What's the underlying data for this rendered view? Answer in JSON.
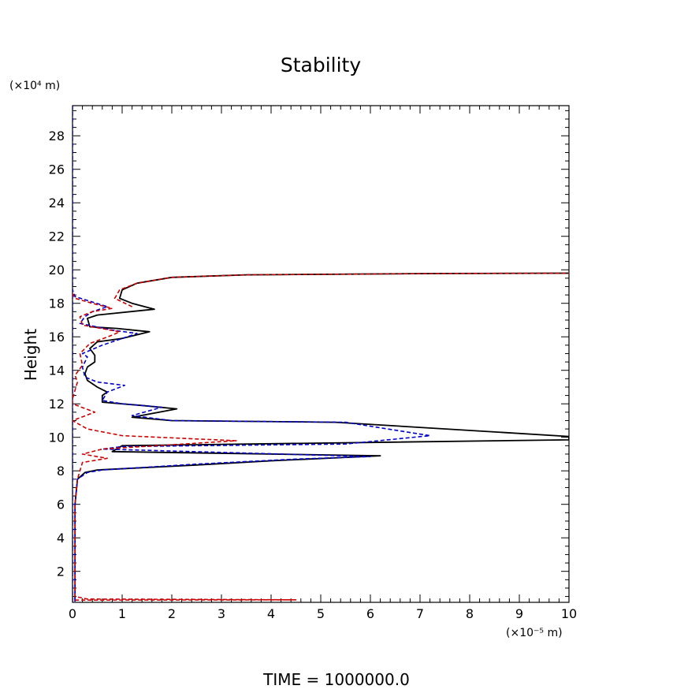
{
  "chart_data": {
    "type": "line",
    "title": "Stability",
    "xlabel": "",
    "ylabel": "Height",
    "x_unit_label": "(×10⁻⁵ m)",
    "y_unit_label": "(×10⁴ m)",
    "xlim": [
      0,
      10
    ],
    "ylim": [
      0.15,
      29.8
    ],
    "x_ticks": [
      0,
      1,
      2,
      3,
      4,
      5,
      6,
      7,
      8,
      9,
      10
    ],
    "x_tick_labels": [
      "0",
      "1",
      "2",
      "3",
      "4",
      "5",
      "6",
      "7",
      "8",
      "9",
      "10"
    ],
    "y_ticks": [
      2,
      4,
      6,
      8,
      10,
      12,
      14,
      16,
      18,
      20,
      22,
      24,
      26,
      28
    ],
    "y_tick_labels": [
      "2",
      "4",
      "6",
      "8",
      "10",
      "12",
      "14",
      "16",
      "18",
      "20",
      "22",
      "24",
      "26",
      "28"
    ],
    "grid": false,
    "footer": "TIME = 1000000.0",
    "series": [
      {
        "name": "black-solid",
        "color": "#000000",
        "dash": "solid",
        "points": [
          [
            0.05,
            0.2
          ],
          [
            0.05,
            6.0
          ],
          [
            0.1,
            7.5
          ],
          [
            0.25,
            7.9
          ],
          [
            0.5,
            8.05
          ],
          [
            2.5,
            8.35
          ],
          [
            4.0,
            8.6
          ],
          [
            6.2,
            8.9
          ],
          [
            0.8,
            9.15
          ],
          [
            1.0,
            9.5
          ],
          [
            10,
            9.85
          ],
          [
            10,
            10.05
          ],
          [
            5.3,
            10.9
          ],
          [
            2.0,
            11.0
          ],
          [
            1.2,
            11.2
          ],
          [
            2.1,
            11.7
          ],
          [
            1.4,
            11.9
          ],
          [
            0.6,
            12.1
          ],
          [
            0.6,
            12.5
          ],
          [
            0.7,
            12.7
          ],
          [
            0.5,
            13.0
          ],
          [
            0.3,
            13.4
          ],
          [
            0.25,
            13.8
          ],
          [
            0.3,
            14.2
          ],
          [
            0.45,
            14.5
          ],
          [
            0.45,
            14.9
          ],
          [
            0.35,
            15.3
          ],
          [
            0.5,
            15.7
          ],
          [
            1.0,
            15.9
          ],
          [
            1.55,
            16.3
          ],
          [
            0.9,
            16.5
          ],
          [
            0.35,
            16.6
          ],
          [
            0.3,
            17.1
          ],
          [
            0.5,
            17.3
          ],
          [
            1.65,
            17.65
          ],
          [
            1.2,
            18.0
          ],
          [
            0.95,
            18.3
          ],
          [
            1.0,
            18.8
          ],
          [
            1.3,
            19.2
          ],
          [
            2.0,
            19.55
          ],
          [
            3.5,
            19.7
          ],
          [
            7.5,
            19.78
          ],
          [
            10,
            19.8
          ]
        ]
      },
      {
        "name": "blue-dashed",
        "color": "#0000cc",
        "dash": "dashed",
        "points": [
          [
            0,
            0.2
          ],
          [
            0,
            29.8
          ]
        ]
      },
      {
        "name": "blue-dashed-profile",
        "color": "#0000cc",
        "dash": "dashed",
        "points": [
          [
            0.05,
            0.2
          ],
          [
            0.05,
            6.0
          ],
          [
            0.1,
            7.5
          ],
          [
            0.3,
            7.9
          ],
          [
            0.6,
            8.05
          ],
          [
            2.5,
            8.4
          ],
          [
            4.5,
            8.7
          ],
          [
            6.0,
            8.85
          ],
          [
            0.6,
            9.3
          ],
          [
            1.0,
            9.45
          ],
          [
            5.5,
            9.6
          ],
          [
            7.2,
            10.1
          ],
          [
            5.5,
            10.9
          ],
          [
            2.0,
            11.0
          ],
          [
            1.2,
            11.3
          ],
          [
            1.8,
            11.8
          ],
          [
            1.0,
            12.0
          ],
          [
            0.6,
            12.2
          ],
          [
            0.7,
            12.7
          ],
          [
            1.05,
            13.1
          ],
          [
            0.5,
            13.3
          ],
          [
            0.25,
            13.6
          ],
          [
            0.2,
            14.2
          ],
          [
            0.3,
            14.8
          ],
          [
            0.2,
            15.0
          ],
          [
            0.6,
            15.5
          ],
          [
            1.0,
            15.9
          ],
          [
            1.3,
            16.2
          ],
          [
            0.8,
            16.4
          ],
          [
            0.15,
            16.8
          ],
          [
            0.25,
            17.2
          ],
          [
            0.4,
            17.5
          ],
          [
            0.7,
            17.8
          ],
          [
            0.05,
            18.4
          ],
          [
            0.0,
            18.8
          ]
        ]
      },
      {
        "name": "red-dashed",
        "color": "#cc0000",
        "dash": "dashed",
        "points": [
          [
            0.05,
            0.28
          ],
          [
            4.5,
            0.3
          ],
          [
            0.3,
            0.35
          ],
          [
            0.05,
            0.5
          ],
          [
            0.05,
            6.0
          ],
          [
            0.1,
            7.5
          ],
          [
            0.2,
            8.5
          ],
          [
            0.4,
            8.6
          ],
          [
            0.7,
            8.75
          ],
          [
            0.2,
            9.0
          ],
          [
            0.6,
            9.3
          ],
          [
            3.3,
            9.8
          ],
          [
            1.0,
            10.1
          ],
          [
            0.3,
            10.5
          ],
          [
            0.0,
            11.0
          ],
          [
            0.45,
            11.5
          ],
          [
            0.0,
            12.0
          ],
          [
            0.0,
            12.3
          ],
          [
            0.1,
            13.3
          ],
          [
            0.05,
            13.7
          ],
          [
            0.2,
            14.3
          ],
          [
            0.15,
            15.0
          ],
          [
            0.35,
            15.6
          ],
          [
            0.8,
            16.1
          ],
          [
            0.95,
            16.3
          ],
          [
            0.2,
            16.7
          ],
          [
            0.15,
            17.2
          ],
          [
            0.4,
            17.5
          ],
          [
            0.8,
            17.7
          ],
          [
            0.4,
            18.0
          ],
          [
            0.05,
            18.3
          ],
          [
            0.0,
            18.6
          ]
        ]
      },
      {
        "name": "red-dashed-top",
        "color": "#cc0000",
        "dash": "dashed",
        "points": [
          [
            1.2,
            17.8
          ],
          [
            0.85,
            18.3
          ],
          [
            0.95,
            18.8
          ],
          [
            1.3,
            19.2
          ],
          [
            2.0,
            19.55
          ],
          [
            3.5,
            19.7
          ],
          [
            7.5,
            19.78
          ],
          [
            10,
            19.8
          ]
        ]
      }
    ]
  }
}
